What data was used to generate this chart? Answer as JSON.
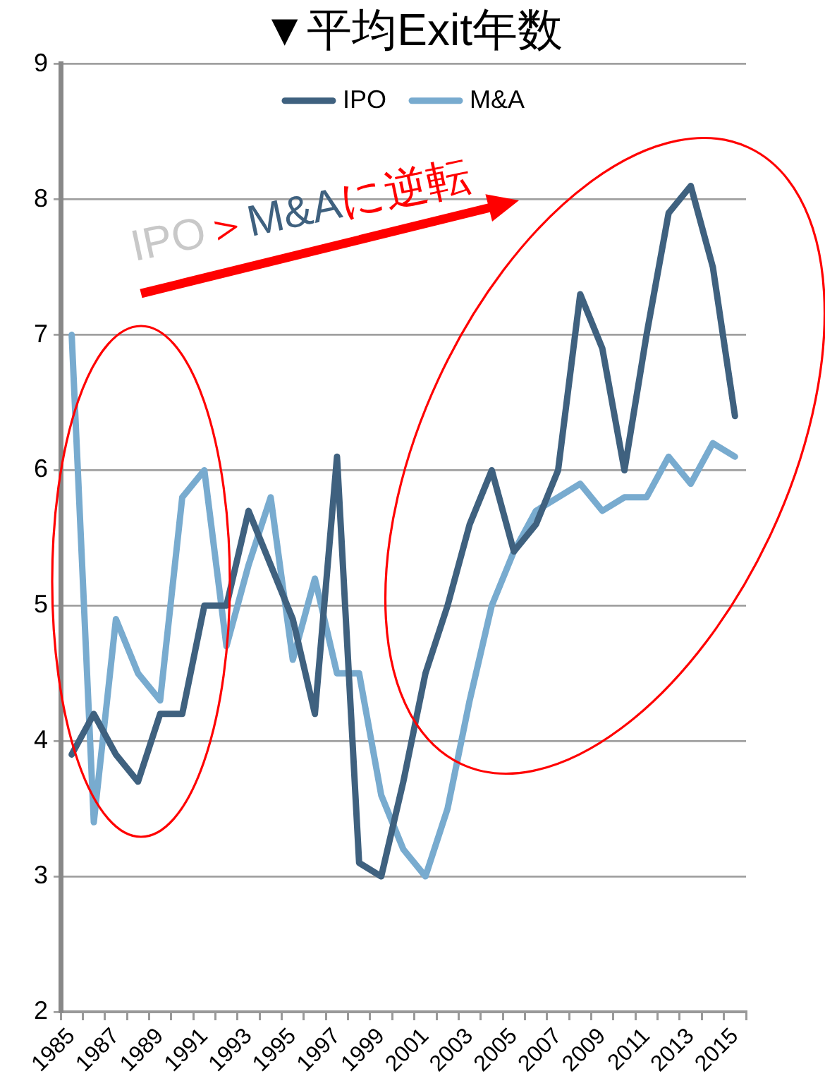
{
  "chart_data": {
    "type": "line",
    "title": "▼平均Exit年数",
    "categories": [
      "1985",
      null,
      "1987",
      null,
      "1989",
      null,
      "1991",
      null,
      "1993",
      null,
      "1995",
      null,
      "1997",
      null,
      "1999",
      null,
      "2001",
      null,
      "2003",
      null,
      "2005",
      null,
      "2007",
      null,
      "2009",
      null,
      "2011",
      null,
      "2013",
      null,
      "2015"
    ],
    "series": [
      {
        "name": "IPO",
        "color": "#3f617f",
        "values": [
          3.9,
          4.2,
          3.9,
          3.7,
          4.2,
          4.2,
          5.0,
          5.0,
          5.7,
          5.3,
          4.9,
          4.2,
          6.1,
          3.1,
          3.0,
          3.7,
          4.5,
          5.0,
          5.6,
          6.0,
          5.4,
          5.6,
          6.0,
          7.3,
          6.9,
          6.0,
          7.0,
          7.9,
          8.1,
          7.5,
          6.4
        ]
      },
      {
        "name": "M&A",
        "color": "#78abcf",
        "values": [
          7.0,
          3.4,
          4.9,
          4.5,
          4.3,
          5.8,
          6.0,
          4.7,
          5.3,
          5.8,
          4.6,
          5.2,
          4.5,
          4.5,
          3.6,
          3.2,
          3.0,
          3.5,
          4.3,
          5.0,
          5.4,
          5.7,
          5.8,
          5.9,
          5.7,
          5.8,
          5.8,
          6.1,
          5.9,
          6.2,
          6.1
        ]
      }
    ],
    "ylim": [
      2,
      9
    ],
    "yticks": [
      2,
      3,
      4,
      5,
      6,
      7,
      8,
      9
    ],
    "grid": "y",
    "legend": "top",
    "marker": "none",
    "line_style": "solid",
    "annotations": [
      "IPO＞M&Aに逆転"
    ]
  }
}
